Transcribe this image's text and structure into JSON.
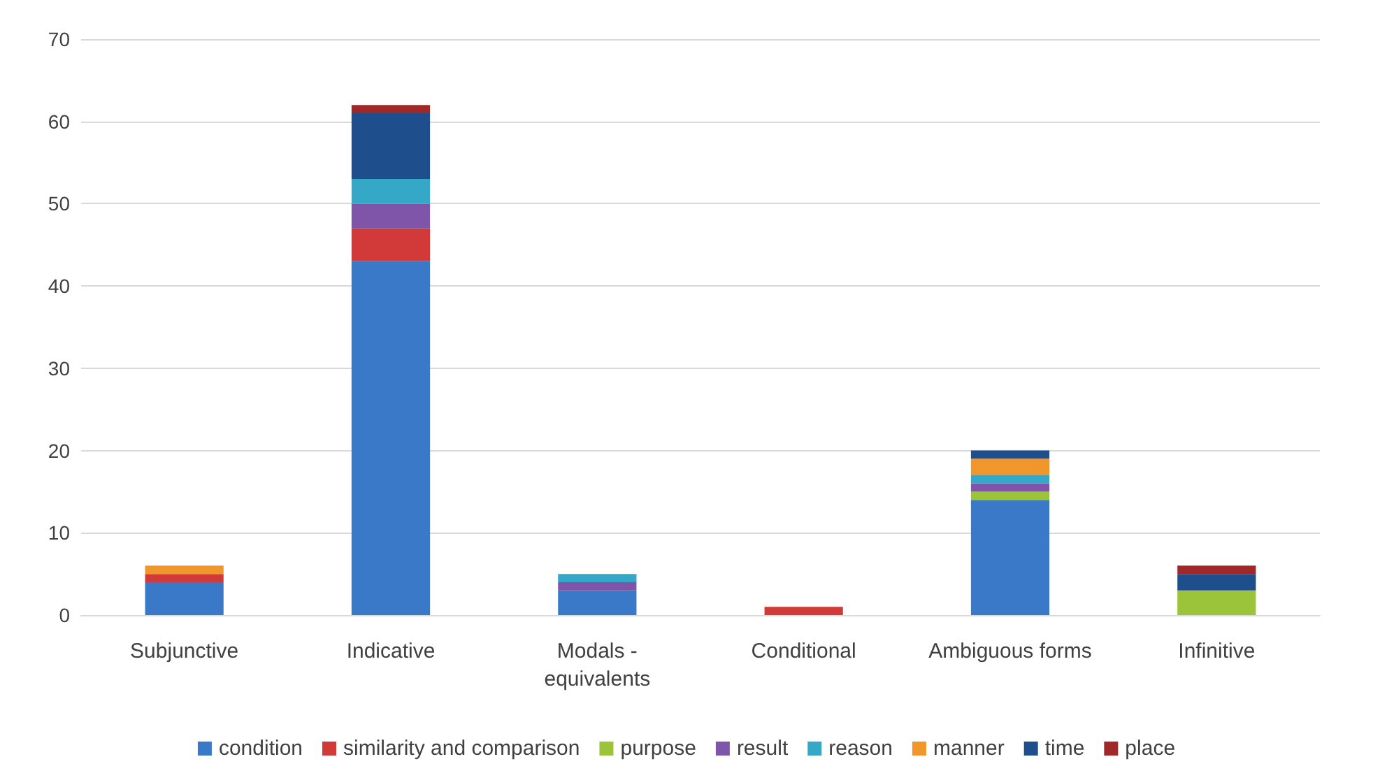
{
  "chart_data": {
    "type": "bar",
    "stacked": true,
    "categories": [
      "Subjunctive",
      "Indicative",
      "Modals -\nequivalents",
      "Conditional",
      "Ambiguous forms",
      "Infinitive"
    ],
    "series": [
      {
        "name": "condition",
        "color": "#3a78c8",
        "values": [
          4,
          43,
          3,
          0,
          14,
          0
        ]
      },
      {
        "name": "similarity and comparison",
        "color": "#d23a3a",
        "values": [
          1,
          4,
          0,
          1,
          0,
          0
        ]
      },
      {
        "name": "purpose",
        "color": "#9cc43a",
        "values": [
          0,
          0,
          0,
          0,
          1,
          3
        ]
      },
      {
        "name": "result",
        "color": "#7e55a8",
        "values": [
          0,
          3,
          1,
          0,
          1,
          0
        ]
      },
      {
        "name": "reason",
        "color": "#35a8c8",
        "values": [
          0,
          3,
          1,
          0,
          1,
          0
        ]
      },
      {
        "name": "manner",
        "color": "#f0962a",
        "values": [
          1,
          0,
          0,
          0,
          2,
          0
        ]
      },
      {
        "name": "time",
        "color": "#1f4e8c",
        "values": [
          0,
          8,
          0,
          0,
          1,
          2
        ]
      },
      {
        "name": "place",
        "color": "#a02828",
        "values": [
          0,
          1,
          0,
          0,
          0,
          1
        ]
      }
    ],
    "ylim": [
      0,
      70
    ],
    "yticks": [
      0,
      10,
      20,
      30,
      40,
      50,
      60,
      70
    ],
    "grid": "y",
    "legend": "bottom"
  }
}
